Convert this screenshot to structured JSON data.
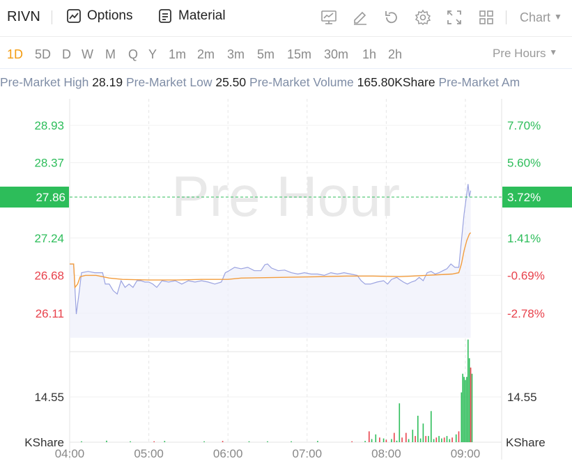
{
  "toolbar": {
    "symbol": "RIVN",
    "options_label": "Options",
    "material_label": "Material",
    "chart_label": "Chart",
    "icons": [
      "chart-indicator-icon",
      "draw-pen-icon",
      "reset-icon",
      "settings-icon",
      "fullscreen-icon",
      "layout-grid-icon"
    ]
  },
  "periods": {
    "items": [
      "1D",
      "5D",
      "D",
      "W",
      "M",
      "Q",
      "Y",
      "1m",
      "2m",
      "3m",
      "5m",
      "15m",
      "30m",
      "1h",
      "2h"
    ],
    "active": "1D",
    "session_label": "Pre Hours"
  },
  "stats": {
    "high_label": "Pre-Market High",
    "high_value": "28.19",
    "low_label": "Pre-Market Low",
    "low_value": "25.50",
    "volume_label": "Pre-Market Volume",
    "volume_value": "165.80KShare",
    "amount_label": "Pre-Market Am"
  },
  "colors": {
    "up": "#2dbd5a",
    "down": "#e8424c",
    "price_line": "#9aa2e0",
    "avg_line": "#f39c3c",
    "accent": "#f39c12"
  },
  "chart_data": {
    "type": "line",
    "watermark": "Pre Hour",
    "current_price": "27.86",
    "current_change": "3.72%",
    "price_ticks": [
      {
        "label": "28.93",
        "value": 28.93,
        "dir": "up"
      },
      {
        "label": "28.37",
        "value": 28.37,
        "dir": "up"
      },
      {
        "label": "27.24",
        "value": 27.24,
        "dir": "up"
      },
      {
        "label": "26.68",
        "value": 26.68,
        "dir": "down"
      },
      {
        "label": "26.11",
        "value": 26.11,
        "dir": "down"
      }
    ],
    "pct_ticks": [
      {
        "label": "7.70%",
        "value": 28.93,
        "dir": "up"
      },
      {
        "label": "5.60%",
        "value": 28.37,
        "dir": "up"
      },
      {
        "label": "1.41%",
        "value": 27.24,
        "dir": "up"
      },
      {
        "label": "-0.69%",
        "value": 26.68,
        "dir": "down"
      },
      {
        "label": "-2.78%",
        "value": 26.11,
        "dir": "down"
      }
    ],
    "x_ticks": [
      {
        "label": "04:00",
        "t": 0
      },
      {
        "label": "05:00",
        "t": 60
      },
      {
        "label": "06:00",
        "t": 120
      },
      {
        "label": "07:00",
        "t": 180
      },
      {
        "label": "08:00",
        "t": 240
      },
      {
        "label": "09:00",
        "t": 300
      }
    ],
    "price_series": [
      [
        0,
        26.85
      ],
      [
        3,
        26.85
      ],
      [
        5,
        26.1
      ],
      [
        7,
        26.4
      ],
      [
        9,
        26.72
      ],
      [
        14,
        26.74
      ],
      [
        19,
        26.72
      ],
      [
        25,
        26.72
      ],
      [
        27,
        26.55
      ],
      [
        30,
        26.55
      ],
      [
        33,
        26.45
      ],
      [
        36,
        26.4
      ],
      [
        39,
        26.6
      ],
      [
        42,
        26.5
      ],
      [
        45,
        26.55
      ],
      [
        48,
        26.5
      ],
      [
        51,
        26.6
      ],
      [
        54,
        26.6
      ],
      [
        57,
        26.58
      ],
      [
        60,
        26.58
      ],
      [
        63,
        26.55
      ],
      [
        66,
        26.5
      ],
      [
        70,
        26.6
      ],
      [
        75,
        26.58
      ],
      [
        80,
        26.6
      ],
      [
        85,
        26.55
      ],
      [
        90,
        26.6
      ],
      [
        95,
        26.58
      ],
      [
        100,
        26.6
      ],
      [
        105,
        26.58
      ],
      [
        110,
        26.55
      ],
      [
        115,
        26.58
      ],
      [
        118,
        26.72
      ],
      [
        120,
        26.74
      ],
      [
        125,
        26.8
      ],
      [
        130,
        26.78
      ],
      [
        135,
        26.8
      ],
      [
        140,
        26.75
      ],
      [
        145,
        26.75
      ],
      [
        148,
        26.84
      ],
      [
        150,
        26.85
      ],
      [
        153,
        26.79
      ],
      [
        158,
        26.75
      ],
      [
        163,
        26.76
      ],
      [
        168,
        26.72
      ],
      [
        173,
        26.7
      ],
      [
        178,
        26.72
      ],
      [
        183,
        26.7
      ],
      [
        188,
        26.7
      ],
      [
        193,
        26.68
      ],
      [
        198,
        26.72
      ],
      [
        203,
        26.7
      ],
      [
        208,
        26.72
      ],
      [
        213,
        26.7
      ],
      [
        218,
        26.68
      ],
      [
        221,
        26.6
      ],
      [
        224,
        26.55
      ],
      [
        228,
        26.55
      ],
      [
        233,
        26.58
      ],
      [
        238,
        26.6
      ],
      [
        241,
        26.55
      ],
      [
        244,
        26.62
      ],
      [
        248,
        26.65
      ],
      [
        250,
        26.62
      ],
      [
        253,
        26.58
      ],
      [
        256,
        26.55
      ],
      [
        259,
        26.58
      ],
      [
        262,
        26.6
      ],
      [
        265,
        26.65
      ],
      [
        268,
        26.6
      ],
      [
        271,
        26.72
      ],
      [
        274,
        26.74
      ],
      [
        277,
        26.7
      ],
      [
        280,
        26.72
      ],
      [
        283,
        26.75
      ],
      [
        286,
        26.78
      ],
      [
        289,
        26.85
      ],
      [
        292,
        26.8
      ],
      [
        295,
        26.8
      ],
      [
        297,
        27.2
      ],
      [
        299,
        27.6
      ],
      [
        301,
        27.9
      ],
      [
        302,
        28.05
      ],
      [
        303,
        27.86
      ],
      [
        304,
        27.95
      ]
    ],
    "avg_series": [
      [
        0,
        26.85
      ],
      [
        3,
        26.85
      ],
      [
        4,
        26.5
      ],
      [
        6,
        26.55
      ],
      [
        8,
        26.66
      ],
      [
        12,
        26.68
      ],
      [
        20,
        26.68
      ],
      [
        25,
        26.66
      ],
      [
        30,
        26.64
      ],
      [
        40,
        26.62
      ],
      [
        60,
        26.61
      ],
      [
        80,
        26.61
      ],
      [
        100,
        26.62
      ],
      [
        120,
        26.62
      ],
      [
        130,
        26.64
      ],
      [
        160,
        26.65
      ],
      [
        190,
        26.66
      ],
      [
        210,
        26.67
      ],
      [
        230,
        26.67
      ],
      [
        250,
        26.66
      ],
      [
        260,
        26.67
      ],
      [
        270,
        26.68
      ],
      [
        280,
        26.69
      ],
      [
        290,
        26.7
      ],
      [
        295,
        26.72
      ],
      [
        297,
        26.85
      ],
      [
        299,
        27.05
      ],
      [
        301,
        27.2
      ],
      [
        303,
        27.3
      ],
      [
        304,
        27.32
      ]
    ],
    "volume_label": "14.55",
    "volume_unit": "KShare",
    "volume_ref": 14.55,
    "volume": [
      [
        9,
        0.3,
        "up"
      ],
      [
        28,
        0.5,
        "up"
      ],
      [
        46,
        0.3,
        "up"
      ],
      [
        64,
        0.3,
        "down"
      ],
      [
        72,
        0.4,
        "up"
      ],
      [
        102,
        0.3,
        "up"
      ],
      [
        116,
        0.4,
        "down"
      ],
      [
        136,
        0.3,
        "up"
      ],
      [
        150,
        0.3,
        "up"
      ],
      [
        168,
        0.3,
        "up"
      ],
      [
        188,
        0.4,
        "up"
      ],
      [
        214,
        0.3,
        "down"
      ],
      [
        224,
        0.4,
        "up"
      ],
      [
        227,
        3.5,
        "down"
      ],
      [
        229,
        1.0,
        "up"
      ],
      [
        232,
        2.5,
        "up"
      ],
      [
        235,
        1.5,
        "down"
      ],
      [
        238,
        1.2,
        "up"
      ],
      [
        240,
        0.8,
        "down"
      ],
      [
        244,
        1.0,
        "up"
      ],
      [
        246,
        3.0,
        "down"
      ],
      [
        248,
        0.5,
        "up"
      ],
      [
        250,
        12.5,
        "up"
      ],
      [
        252,
        1.5,
        "down"
      ],
      [
        255,
        3.0,
        "down"
      ],
      [
        257,
        1.0,
        "up"
      ],
      [
        260,
        4.0,
        "up"
      ],
      [
        262,
        2.0,
        "down"
      ],
      [
        264,
        8.5,
        "up"
      ],
      [
        266,
        1.2,
        "up"
      ],
      [
        268,
        6.0,
        "up"
      ],
      [
        270,
        2.0,
        "down"
      ],
      [
        272,
        2.0,
        "up"
      ],
      [
        274,
        10.0,
        "up"
      ],
      [
        276,
        1.0,
        "up"
      ],
      [
        278,
        1.5,
        "down"
      ],
      [
        280,
        2.0,
        "up"
      ],
      [
        282,
        1.2,
        "up"
      ],
      [
        284,
        1.5,
        "down"
      ],
      [
        286,
        2.0,
        "up"
      ],
      [
        288,
        1.0,
        "up"
      ],
      [
        290,
        1.5,
        "down"
      ],
      [
        293,
        2.5,
        "up"
      ],
      [
        295,
        3.5,
        "down"
      ],
      [
        297,
        16.0,
        "up"
      ],
      [
        298,
        22.0,
        "up"
      ],
      [
        299,
        21.0,
        "up"
      ],
      [
        300,
        20.0,
        "up"
      ],
      [
        301,
        21.0,
        "up"
      ],
      [
        302,
        33.0,
        "up"
      ],
      [
        303,
        27.0,
        "up"
      ],
      [
        304,
        24.0,
        "down"
      ],
      [
        305,
        22.0,
        "up"
      ]
    ]
  }
}
